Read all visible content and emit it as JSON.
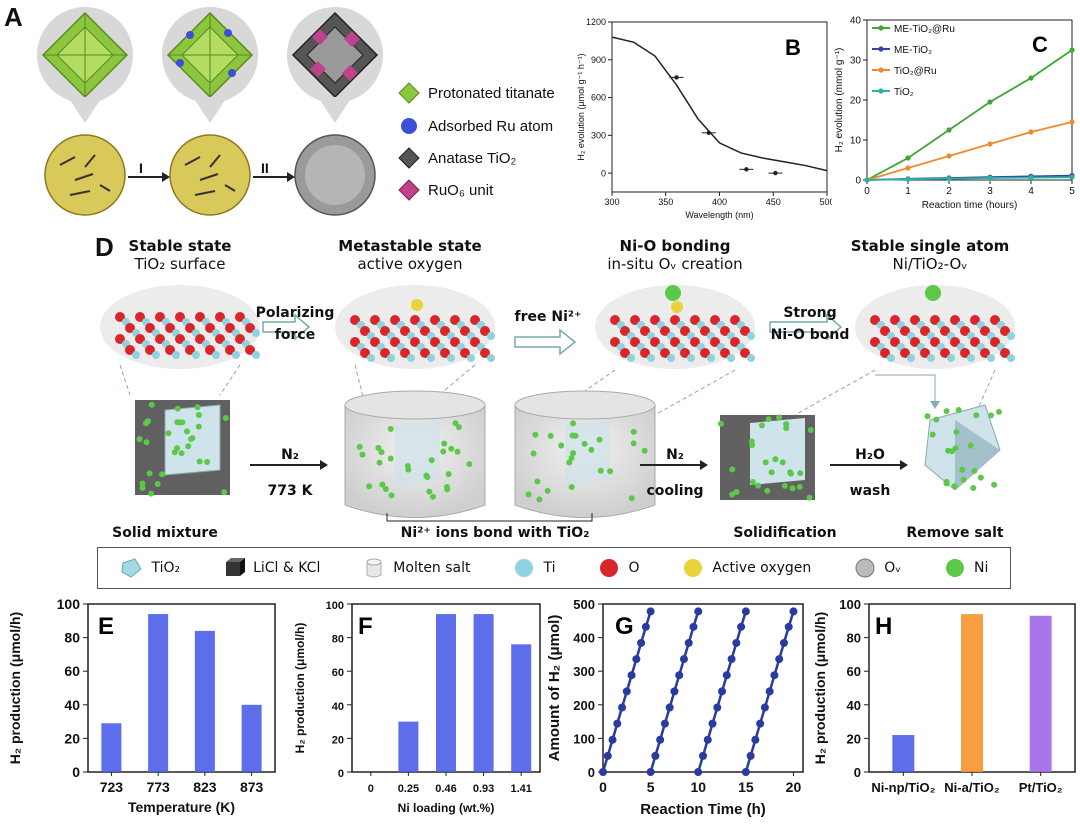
{
  "panel_labels": {
    "A": "A",
    "B": "B",
    "C": "C",
    "D": "D",
    "E": "E",
    "F": "F",
    "G": "G",
    "H": "H"
  },
  "panel_a": {
    "step1": "I",
    "step2": "II",
    "legend": [
      "Protonated titanate",
      "Adsorbed Ru atom",
      "Anatase TiO₂",
      "RuO₆ unit"
    ]
  },
  "panel_d": {
    "headers": [
      {
        "title": "Stable state",
        "sub": "TiO₂ surface"
      },
      {
        "title": "Metastable state",
        "sub": "active oxygen"
      },
      {
        "title": "Ni-O bonding",
        "sub": "in-situ Oᵥ creation"
      },
      {
        "title": "Stable single atom",
        "sub": "Ni/TiO₂-Oᵥ"
      }
    ],
    "top_arrows": [
      {
        "l1": "Polarizing",
        "l2": "force"
      },
      {
        "l1": "free Ni²⁺",
        "l2": ""
      },
      {
        "l1": "Strong",
        "l2": "Ni-O bond"
      }
    ],
    "bottom_arrows": [
      {
        "l1": "N₂",
        "l2": "773 K"
      },
      {
        "l1": "N₂",
        "l2": "cooling"
      },
      {
        "l1": "H₂O",
        "l2": "wash"
      }
    ],
    "stages": [
      "Solid mixture",
      "Ni²⁺ ions bond with TiO₂",
      "Solidification",
      "Remove salt"
    ],
    "legend": [
      "TiO₂",
      "LiCl & KCl",
      "Molten salt",
      "Ti",
      "O",
      "Active oxygen",
      "Oᵥ",
      "Ni"
    ],
    "colors": {
      "ti": "#8fd3e0",
      "o": "#d9262a",
      "active": "#e8d43a",
      "ni": "#5cc84a",
      "ov": "#bbbbbb"
    }
  },
  "chart_data": [
    {
      "id": "B",
      "type": "line",
      "xlabel": "Wavelength (nm)",
      "ylabel": "H₂ evolution (μmol g⁻¹ h⁻¹)",
      "xlim": [
        300,
        500
      ],
      "ylim": [
        -150,
        1200
      ],
      "xticks": [
        300,
        350,
        400,
        450,
        500
      ],
      "yticks": [
        0,
        300,
        600,
        900,
        1200
      ],
      "curve": {
        "x": [
          300,
          320,
          340,
          360,
          380,
          400,
          420,
          440,
          460,
          480,
          500
        ],
        "y": [
          1080,
          1040,
          930,
          700,
          430,
          240,
          160,
          120,
          90,
          60,
          20
        ]
      },
      "points": {
        "x": [
          360,
          390,
          425,
          452
        ],
        "y": [
          760,
          320,
          30,
          0
        ]
      }
    },
    {
      "id": "C",
      "type": "line",
      "xlabel": "Reaction time (hours)",
      "ylabel": "H₂ evolution (mmol g⁻¹)",
      "xlim": [
        0,
        5
      ],
      "ylim": [
        0,
        40
      ],
      "xticks": [
        0,
        1,
        2,
        3,
        4,
        5
      ],
      "yticks": [
        0,
        10,
        20,
        30,
        40
      ],
      "x": [
        0,
        1,
        2,
        3,
        4,
        5
      ],
      "series": [
        {
          "name": "ME-TiO₂@Ru",
          "values": [
            0,
            5.5,
            12.5,
            19.5,
            25.5,
            32.5
          ],
          "color": "#3fa535"
        },
        {
          "name": "ME-TiO₂",
          "values": [
            0,
            0.3,
            0.5,
            0.7,
            0.9,
            1.1
          ],
          "color": "#3543a5"
        },
        {
          "name": "TiO₂@Ru",
          "values": [
            0,
            3,
            6,
            9,
            12,
            14.5
          ],
          "color": "#f08a2c"
        },
        {
          "name": "TiO₂",
          "values": [
            0,
            0.2,
            0.35,
            0.5,
            0.6,
            0.7
          ],
          "color": "#2ab3a0"
        }
      ]
    },
    {
      "id": "E",
      "type": "bar",
      "xlabel": "Temperature (K)",
      "ylabel": "H₂ production (μmol/h)",
      "categories": [
        "723",
        "773",
        "823",
        "873"
      ],
      "values": [
        29,
        94,
        84,
        40
      ],
      "ylim": [
        0,
        100
      ],
      "yticks": [
        0,
        20,
        40,
        60,
        80,
        100
      ]
    },
    {
      "id": "F",
      "type": "bar",
      "xlabel": "Ni loading (wt.%)",
      "ylabel": "H₂ production (μmol/h)",
      "categories": [
        "0",
        "0.25",
        "0.46",
        "0.93",
        "1.41"
      ],
      "values": [
        0,
        30,
        94,
        94,
        76
      ],
      "ylim": [
        0,
        100
      ],
      "yticks": [
        0,
        20,
        40,
        60,
        80,
        100
      ]
    },
    {
      "id": "G",
      "type": "line",
      "xlabel": "Reaction Time (h)",
      "ylabel": "Amount of H₂ (μmol)",
      "xlim": [
        0,
        21
      ],
      "ylim": [
        0,
        500
      ],
      "xticks": [
        0,
        5,
        10,
        15,
        20
      ],
      "yticks": [
        0,
        100,
        200,
        300,
        400,
        500
      ],
      "cycles": [
        {
          "x": [
            0,
            0.5,
            1,
            1.5,
            2,
            2.5,
            3,
            3.5,
            4,
            4.5,
            5
          ],
          "y": [
            0,
            48,
            96,
            144,
            192,
            240,
            288,
            336,
            384,
            432,
            478
          ]
        },
        {
          "x": [
            5,
            5.5,
            6,
            6.5,
            7,
            7.5,
            8,
            8.5,
            9,
            9.5,
            10
          ],
          "y": [
            0,
            48,
            96,
            144,
            192,
            240,
            288,
            336,
            384,
            432,
            478
          ]
        },
        {
          "x": [
            10,
            10.5,
            11,
            11.5,
            12,
            12.5,
            13,
            13.5,
            14,
            14.5,
            15
          ],
          "y": [
            0,
            48,
            96,
            144,
            192,
            240,
            288,
            336,
            384,
            432,
            478
          ]
        },
        {
          "x": [
            15,
            15.5,
            16,
            16.5,
            17,
            17.5,
            18,
            18.5,
            19,
            19.5,
            20
          ],
          "y": [
            0,
            48,
            96,
            144,
            192,
            240,
            288,
            336,
            384,
            432,
            478
          ]
        }
      ],
      "color": "#2a3a9e"
    },
    {
      "id": "H",
      "type": "bar",
      "xlabel": "",
      "ylabel": "H₂ production (μmol/h)",
      "categories": [
        "Ni-np/TiO₂",
        "Ni-a/TiO₂",
        "Pt/TiO₂"
      ],
      "values": [
        22,
        94,
        93
      ],
      "colors": [
        "#4a5ee8",
        "#f7922e",
        "#a066e8"
      ],
      "ylim": [
        0,
        100
      ],
      "yticks": [
        0,
        20,
        40,
        60,
        80,
        100
      ]
    }
  ]
}
